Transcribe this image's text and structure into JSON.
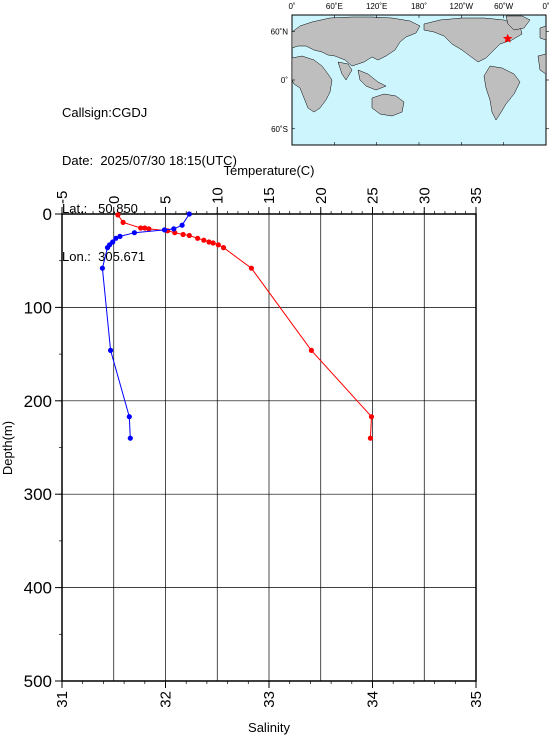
{
  "station": {
    "callsign_label": "Callsign:",
    "callsign": "CGDJ",
    "date_label": "Date:",
    "date": "2025/07/30 18:15(UTC)",
    "lat_label": "Lat.:",
    "lat": "50.850",
    "lon_label": "Lon.:",
    "lon": "305.671"
  },
  "map": {
    "top_labels": [
      "0˚",
      "60˚E",
      "120˚E",
      "180˚",
      "120˚W",
      "60˚W",
      "0˚"
    ],
    "side_labels": [
      "60˚N",
      "0˚",
      "60˚S"
    ],
    "ocean_color": "#ccf5fd",
    "land_color": "#bebebe",
    "marker_color": "#ff0000",
    "marker_lon": 305.671,
    "marker_lat": 50.85
  },
  "chart_data": {
    "type": "line",
    "top_axis": {
      "label": "Temperature(C)",
      "range": [
        -5,
        35
      ],
      "ticks": [
        "-5",
        "0",
        "5",
        "10",
        "15",
        "20",
        "25",
        "30",
        "35"
      ]
    },
    "bottom_axis": {
      "label": "Salinity",
      "range": [
        31,
        35
      ],
      "ticks": [
        "31",
        "32",
        "33",
        "34",
        "35"
      ]
    },
    "y_axis": {
      "label": "Depth(m)",
      "range": [
        0,
        500
      ],
      "inverted": true,
      "ticks": [
        "0",
        "100",
        "200",
        "300",
        "400",
        "500"
      ]
    },
    "grid": true,
    "series": [
      {
        "color": "#ff0000",
        "axis": "top",
        "points": [
          {
            "depth": 1,
            "value": 0.4
          },
          {
            "depth": 9,
            "value": 0.9
          },
          {
            "depth": 15,
            "value": 2.6
          },
          {
            "depth": 15,
            "value": 3.0
          },
          {
            "depth": 16,
            "value": 3.4
          },
          {
            "depth": 18,
            "value": 5.2
          },
          {
            "depth": 20,
            "value": 5.9
          },
          {
            "depth": 22,
            "value": 6.7
          },
          {
            "depth": 23,
            "value": 7.3
          },
          {
            "depth": 26,
            "value": 8.1
          },
          {
            "depth": 28,
            "value": 8.7
          },
          {
            "depth": 30,
            "value": 9.2
          },
          {
            "depth": 31,
            "value": 9.6
          },
          {
            "depth": 33,
            "value": 10.1
          },
          {
            "depth": 36,
            "value": 10.6
          },
          {
            "depth": 58,
            "value": 13.3
          },
          {
            "depth": 146,
            "value": 19.1
          },
          {
            "depth": 217,
            "value": 24.9
          },
          {
            "depth": 240,
            "value": 24.8
          }
        ]
      },
      {
        "color": "#0000ff",
        "axis": "bottom",
        "points": [
          {
            "depth": 0,
            "value": 32.23
          },
          {
            "depth": 12,
            "value": 32.16
          },
          {
            "depth": 16,
            "value": 32.08
          },
          {
            "depth": 17,
            "value": 31.99
          },
          {
            "depth": 20,
            "value": 31.7
          },
          {
            "depth": 24,
            "value": 31.56
          },
          {
            "depth": 26,
            "value": 31.52
          },
          {
            "depth": 30,
            "value": 31.49
          },
          {
            "depth": 33,
            "value": 31.46
          },
          {
            "depth": 36,
            "value": 31.44
          },
          {
            "depth": 58,
            "value": 31.39
          },
          {
            "depth": 146,
            "value": 31.47
          },
          {
            "depth": 217,
            "value": 31.65
          },
          {
            "depth": 240,
            "value": 31.66
          }
        ]
      }
    ]
  }
}
